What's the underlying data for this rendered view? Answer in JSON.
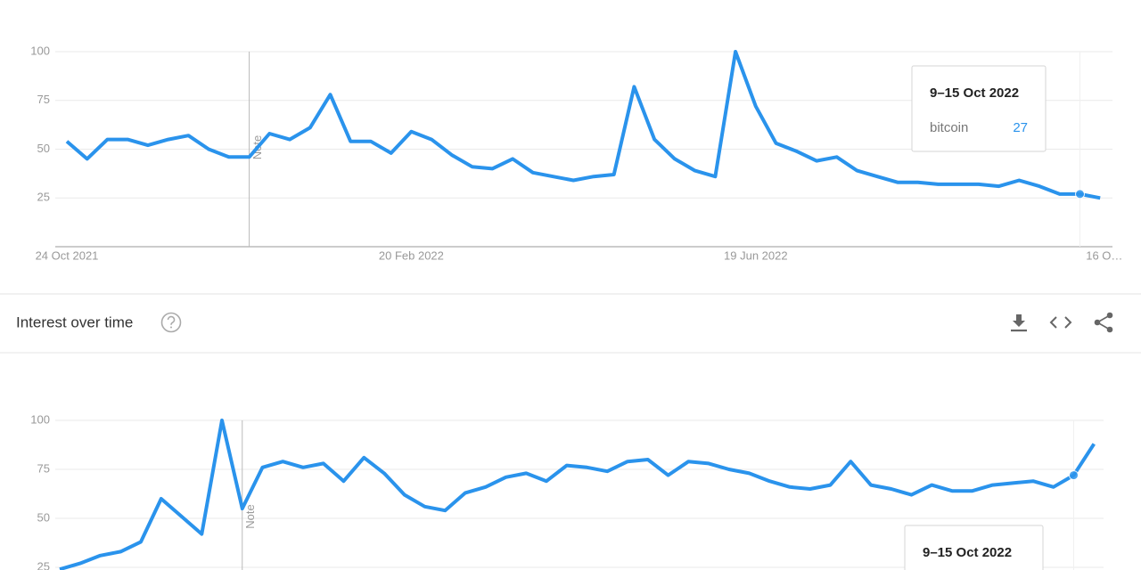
{
  "chart_data": [
    {
      "type": "line",
      "categories": [
        "24 Oct 2021",
        null,
        null,
        null,
        null,
        null,
        null,
        null,
        null,
        null,
        null,
        null,
        null,
        null,
        null,
        null,
        null,
        "20 Feb 2022",
        null,
        null,
        null,
        null,
        null,
        null,
        null,
        null,
        null,
        null,
        null,
        null,
        null,
        null,
        null,
        null,
        "19 Jun 2022",
        null,
        null,
        null,
        null,
        null,
        null,
        null,
        null,
        null,
        null,
        null,
        null,
        null,
        null,
        null,
        null,
        "16 O…"
      ],
      "series": [
        {
          "name": "bitcoin",
          "color": "#2a93ec",
          "values": [
            54,
            45,
            55,
            55,
            52,
            55,
            57,
            50,
            46,
            46,
            58,
            55,
            61,
            78,
            54,
            54,
            48,
            59,
            55,
            47,
            41,
            40,
            45,
            38,
            36,
            34,
            36,
            37,
            82,
            55,
            45,
            39,
            36,
            100,
            72,
            53,
            49,
            44,
            46,
            39,
            36,
            33,
            33,
            32,
            32,
            32,
            31,
            34,
            31,
            27,
            27,
            25
          ]
        }
      ],
      "ylim": [
        0,
        100
      ],
      "yticks": [
        25,
        50,
        75,
        100
      ],
      "grid": true,
      "note": "Note",
      "tooltip": {
        "title": "9–15 Oct 2022"
      }
    },
    {
      "type": "line",
      "color": "#2a93ec",
      "values": [
        24,
        27,
        31,
        33,
        38,
        60,
        51,
        42,
        100,
        55,
        76,
        79,
        76,
        78,
        69,
        81,
        73,
        62,
        56,
        54,
        63,
        66,
        71,
        73,
        69,
        77,
        76,
        74,
        79,
        80,
        72,
        79,
        78,
        75,
        73,
        69,
        66,
        65,
        67,
        79,
        67,
        65,
        62,
        67,
        64,
        64,
        67,
        68,
        69,
        66,
        72,
        88
      ],
      "ylim": [
        0,
        100
      ],
      "yticks": [
        25,
        50,
        75,
        100
      ],
      "grid": true,
      "note": "Note",
      "tooltip": {
        "title": "9–15 Oct 2022"
      }
    }
  ],
  "section": {
    "title": "Interest over time"
  }
}
